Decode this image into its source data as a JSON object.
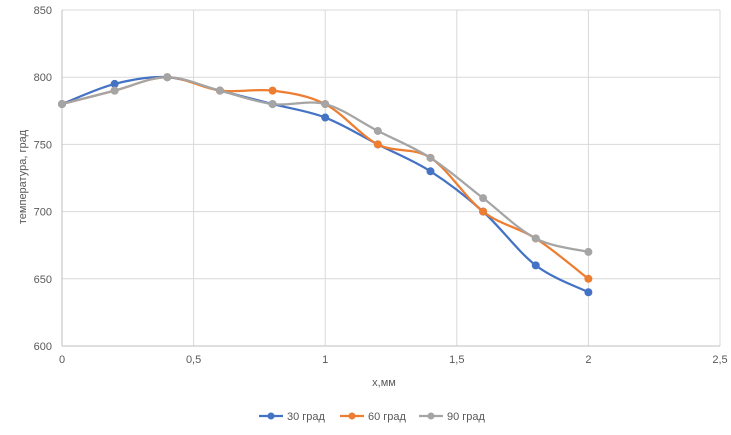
{
  "chart_data": {
    "type": "line",
    "xlabel": "х,мм",
    "ylabel": "температура, град",
    "xlim": [
      0,
      2.5
    ],
    "ylim": [
      600,
      850
    ],
    "x_ticks": [
      0,
      0.5,
      1,
      1.5,
      2,
      2.5
    ],
    "x_tick_labels": [
      "0",
      "0,5",
      "1",
      "1,5",
      "2",
      "2,5"
    ],
    "y_ticks": [
      600,
      650,
      700,
      750,
      800,
      850
    ],
    "y_tick_labels": [
      "600",
      "650",
      "700",
      "750",
      "800",
      "850"
    ],
    "grid": true,
    "legend_position": "bottom",
    "smooth": true,
    "series": [
      {
        "name": "30 град",
        "color": "#4472C4",
        "x": [
          0,
          0.2,
          0.4,
          0.6,
          0.8,
          1.0,
          1.2,
          1.4,
          1.6,
          1.8,
          2.0
        ],
        "y": [
          780,
          795,
          800,
          790,
          780,
          770,
          750,
          730,
          700,
          660,
          640
        ]
      },
      {
        "name": "60 град",
        "color": "#ED7D31",
        "x": [
          0,
          0.2,
          0.4,
          0.6,
          0.8,
          1.0,
          1.2,
          1.4,
          1.6,
          1.8,
          2.0
        ],
        "y": [
          780,
          790,
          800,
          790,
          790,
          780,
          750,
          740,
          700,
          680,
          650
        ]
      },
      {
        "name": "90 град",
        "color": "#A5A5A5",
        "x": [
          0,
          0.2,
          0.4,
          0.6,
          0.8,
          1.0,
          1.2,
          1.4,
          1.6,
          1.8,
          2.0
        ],
        "y": [
          780,
          790,
          800,
          790,
          780,
          780,
          760,
          740,
          710,
          680,
          670
        ]
      }
    ]
  }
}
